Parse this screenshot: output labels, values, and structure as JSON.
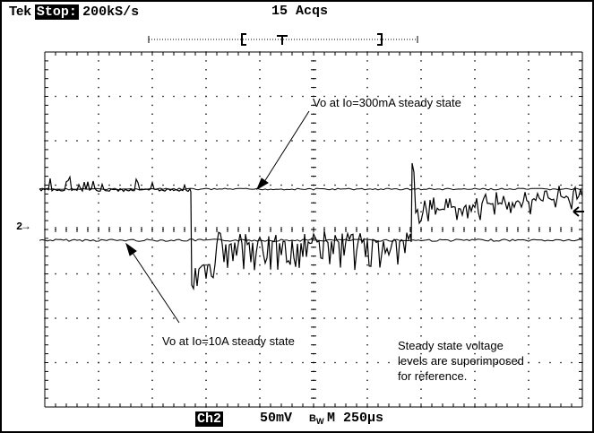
{
  "header": {
    "brand": "Tek",
    "state": "Stop:",
    "rate": "200kS/s",
    "acqs": "15 Acqs"
  },
  "footer": {
    "channel": "Ch2",
    "volts_div": "50mV",
    "bw_symbol": "B",
    "bw_sub": "W",
    "timebase": "M 250µs"
  },
  "channel_marker": "2",
  "annotations": {
    "top_label": "Vo at Io=300mA steady state",
    "bottom_label": "Vo at Io=10A steady state",
    "note_lines": [
      "Steady state voltage",
      "levels are superimposed",
      "for reference."
    ]
  },
  "colors": {
    "trace": "#000000",
    "background": "#ffffff",
    "grid": "#000000"
  }
}
